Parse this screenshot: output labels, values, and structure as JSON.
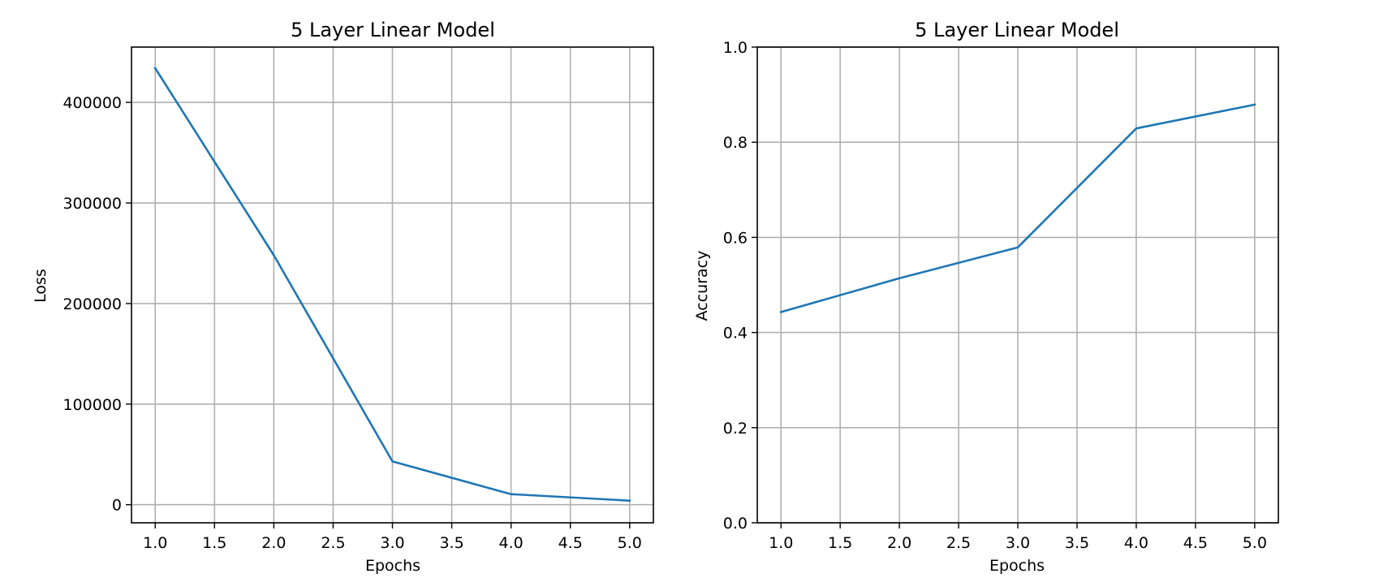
{
  "chart_data": [
    {
      "type": "line",
      "title": "5 Layer Linear Model",
      "xlabel": "Epochs",
      "ylabel": "Loss",
      "x": [
        1,
        2,
        3,
        4,
        5
      ],
      "series": [
        {
          "values": [
            434000,
            248000,
            43000,
            10500,
            4000
          ]
        }
      ],
      "xlim": [
        0.8,
        5.2
      ],
      "ylim": [
        -18000,
        455000
      ],
      "xticks": [
        "1.0",
        "1.5",
        "2.0",
        "2.5",
        "3.0",
        "3.5",
        "4.0",
        "4.5",
        "5.0"
      ],
      "yticks": [
        "0",
        "100000",
        "200000",
        "300000",
        "400000"
      ],
      "grid": true,
      "line_color": "#1f77b4"
    },
    {
      "type": "line",
      "title": "5 Layer Linear Model",
      "xlabel": "Epochs",
      "ylabel": "Accuracy",
      "x": [
        1,
        2,
        3,
        4,
        5
      ],
      "series": [
        {
          "values": [
            0.443,
            0.514,
            0.579,
            0.829,
            0.879
          ]
        }
      ],
      "xlim": [
        0.8,
        5.2
      ],
      "ylim": [
        0.0,
        1.0
      ],
      "xticks": [
        "1.0",
        "1.5",
        "2.0",
        "2.5",
        "3.0",
        "3.5",
        "4.0",
        "4.5",
        "5.0"
      ],
      "yticks": [
        "0.0",
        "0.2",
        "0.4",
        "0.6",
        "0.8",
        "1.0"
      ],
      "grid": true,
      "line_color": "#1f77b4"
    }
  ]
}
